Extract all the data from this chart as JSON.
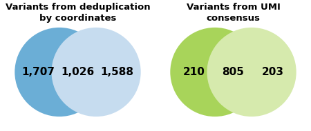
{
  "left_title": "Variants from deduplication\nby coordinates",
  "right_title": "Variants from UMI\nconsensus",
  "left_circle1_color": "#6baed6",
  "left_circle2_color": "#c6dcef",
  "right_circle1_color": "#a8d45a",
  "right_circle2_color": "#d6eaad",
  "left_labels": [
    "1,707",
    "1,026",
    "1,588"
  ],
  "right_labels": [
    "210",
    "805",
    "203"
  ],
  "title_fontsize": 9.5,
  "label_fontsize": 11,
  "background_color": "#ffffff"
}
